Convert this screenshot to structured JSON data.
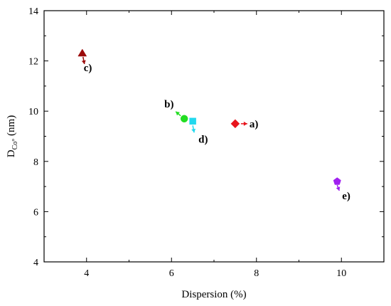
{
  "chart_data": {
    "type": "scatter",
    "title": "",
    "xlabel": "Dispersion (%)",
    "ylabel": "D",
    "ylabel_sub": "Co°",
    "ylabel_unit": " (nm)",
    "xlim": [
      3,
      11
    ],
    "ylim": [
      4,
      14
    ],
    "xticks": [
      4,
      6,
      8,
      10
    ],
    "yticks": [
      4,
      6,
      8,
      10,
      12,
      14
    ],
    "grid": false,
    "points": [
      {
        "label": "a)",
        "x": 7.5,
        "y": 9.5,
        "color": "#e8141c",
        "marker": "diamond"
      },
      {
        "label": "b)",
        "x": 6.3,
        "y": 9.7,
        "color": "#22dd22",
        "marker": "circle"
      },
      {
        "label": "c)",
        "x": 3.9,
        "y": 12.3,
        "color": "#9b0a0a",
        "marker": "triangle"
      },
      {
        "label": "d)",
        "x": 6.5,
        "y": 9.6,
        "color": "#22d8ee",
        "marker": "square"
      },
      {
        "label": "e)",
        "x": 9.9,
        "y": 7.2,
        "color": "#a020f0",
        "marker": "pentagon"
      }
    ]
  }
}
